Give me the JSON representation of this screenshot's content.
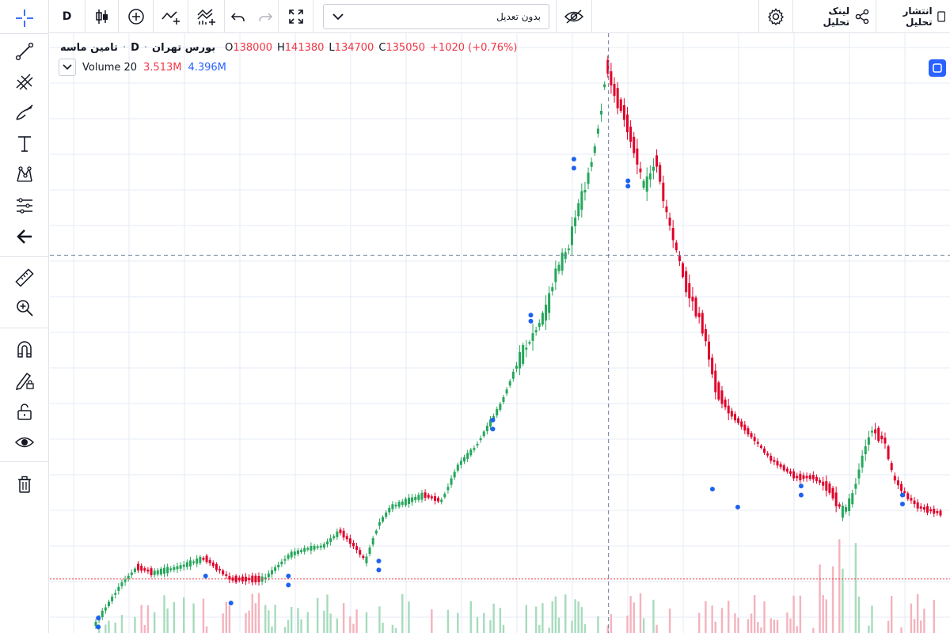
{
  "toolbar": {
    "interval": "D",
    "icons": [
      "candle-style-icon",
      "indicator-add-icon",
      "compare-icon",
      "indicators-icon",
      "undo-icon",
      "redo-icon",
      "fullscreen-icon"
    ],
    "price_adjustment": {
      "selected": "بدون تعدیل"
    },
    "hide_icon": "eye-off-icon",
    "settings_icon": "gear-icon",
    "share_link_label": "لینک تحلیل",
    "publish_label": "انتشار تحلیل"
  },
  "left_tools": [
    "crosshair-icon",
    "trendline-icon",
    "fib-icon",
    "brush-icon",
    "text-icon",
    "pattern-icon",
    "forecast-icon",
    "back-arrow-icon",
    "ruler-icon",
    "zoom-in-icon",
    "magnet-icon",
    "lock-drawing-icon",
    "unlock-icon",
    "eye-icon",
    "trash-icon"
  ],
  "legend": {
    "symbol": "تامین ماسه",
    "interval": "D",
    "exchange": "بورس تهران",
    "open_key": "O",
    "open": "138000",
    "high_key": "H",
    "high": "141380",
    "low_key": "L",
    "low": "134700",
    "close_key": "C",
    "close": "135050",
    "change": "+1020 (+0.76%)"
  },
  "volume_legend": {
    "label": "Volume 20",
    "value1": "3.513M",
    "value2": "4.396M"
  },
  "colors": {
    "up": "#26a65b",
    "down": "#e0002a",
    "grid": "#e6ebf5",
    "crosshair": "#6b7a99",
    "price_line": "#f23645",
    "signal_dot": "#1d62f0",
    "accent": "#2962ff"
  },
  "chart_data": {
    "type": "candlestick",
    "price_path": [
      {
        "x": 0.0,
        "y": 0.985
      },
      {
        "x": 0.03,
        "y": 0.92
      },
      {
        "x": 0.05,
        "y": 0.89
      },
      {
        "x": 0.07,
        "y": 0.9
      },
      {
        "x": 0.1,
        "y": 0.89
      },
      {
        "x": 0.13,
        "y": 0.875
      },
      {
        "x": 0.16,
        "y": 0.91
      },
      {
        "x": 0.2,
        "y": 0.91
      },
      {
        "x": 0.23,
        "y": 0.87
      },
      {
        "x": 0.25,
        "y": 0.86
      },
      {
        "x": 0.27,
        "y": 0.855
      },
      {
        "x": 0.29,
        "y": 0.83
      },
      {
        "x": 0.31,
        "y": 0.86
      },
      {
        "x": 0.32,
        "y": 0.88
      },
      {
        "x": 0.335,
        "y": 0.82
      },
      {
        "x": 0.35,
        "y": 0.79
      },
      {
        "x": 0.37,
        "y": 0.78
      },
      {
        "x": 0.39,
        "y": 0.77
      },
      {
        "x": 0.41,
        "y": 0.78
      },
      {
        "x": 0.43,
        "y": 0.72
      },
      {
        "x": 0.45,
        "y": 0.69
      },
      {
        "x": 0.48,
        "y": 0.62
      },
      {
        "x": 0.5,
        "y": 0.55
      },
      {
        "x": 0.52,
        "y": 0.5
      },
      {
        "x": 0.535,
        "y": 0.46
      },
      {
        "x": 0.545,
        "y": 0.4
      },
      {
        "x": 0.56,
        "y": 0.36
      },
      {
        "x": 0.57,
        "y": 0.3
      },
      {
        "x": 0.58,
        "y": 0.26
      },
      {
        "x": 0.59,
        "y": 0.2
      },
      {
        "x": 0.6,
        "y": 0.12
      },
      {
        "x": 0.605,
        "y": 0.05
      },
      {
        "x": 0.615,
        "y": 0.1
      },
      {
        "x": 0.625,
        "y": 0.13
      },
      {
        "x": 0.64,
        "y": 0.2
      },
      {
        "x": 0.65,
        "y": 0.26
      },
      {
        "x": 0.665,
        "y": 0.21
      },
      {
        "x": 0.675,
        "y": 0.29
      },
      {
        "x": 0.69,
        "y": 0.37
      },
      {
        "x": 0.7,
        "y": 0.42
      },
      {
        "x": 0.72,
        "y": 0.49
      },
      {
        "x": 0.735,
        "y": 0.59
      },
      {
        "x": 0.75,
        "y": 0.63
      },
      {
        "x": 0.77,
        "y": 0.66
      },
      {
        "x": 0.8,
        "y": 0.71
      },
      {
        "x": 0.83,
        "y": 0.74
      },
      {
        "x": 0.85,
        "y": 0.74
      },
      {
        "x": 0.87,
        "y": 0.76
      },
      {
        "x": 0.885,
        "y": 0.8
      },
      {
        "x": 0.895,
        "y": 0.78
      },
      {
        "x": 0.91,
        "y": 0.7
      },
      {
        "x": 0.92,
        "y": 0.66
      },
      {
        "x": 0.935,
        "y": 0.68
      },
      {
        "x": 0.945,
        "y": 0.74
      },
      {
        "x": 0.96,
        "y": 0.77
      },
      {
        "x": 0.975,
        "y": 0.79
      },
      {
        "x": 1.0,
        "y": 0.8
      }
    ],
    "signal_dots": [
      {
        "x": 0.003,
        "y": 0.975
      },
      {
        "x": 0.003,
        "y": 0.99
      },
      {
        "x": 0.13,
        "y": 0.905
      },
      {
        "x": 0.16,
        "y": 0.95
      },
      {
        "x": 0.228,
        "y": 0.905
      },
      {
        "x": 0.228,
        "y": 0.92
      },
      {
        "x": 0.335,
        "y": 0.88
      },
      {
        "x": 0.335,
        "y": 0.895
      },
      {
        "x": 0.47,
        "y": 0.645
      },
      {
        "x": 0.47,
        "y": 0.66
      },
      {
        "x": 0.515,
        "y": 0.47
      },
      {
        "x": 0.515,
        "y": 0.48
      },
      {
        "x": 0.566,
        "y": 0.21
      },
      {
        "x": 0.566,
        "y": 0.225
      },
      {
        "x": 0.63,
        "y": 0.246
      },
      {
        "x": 0.63,
        "y": 0.255
      },
      {
        "x": 0.73,
        "y": 0.76
      },
      {
        "x": 0.76,
        "y": 0.79
      },
      {
        "x": 0.835,
        "y": 0.755
      },
      {
        "x": 0.835,
        "y": 0.77
      },
      {
        "x": 0.955,
        "y": 0.77
      },
      {
        "x": 0.955,
        "y": 0.785
      }
    ],
    "crosshair": {
      "x": 0.607,
      "y": 0.37
    },
    "last_price_line_y": 0.91
  }
}
